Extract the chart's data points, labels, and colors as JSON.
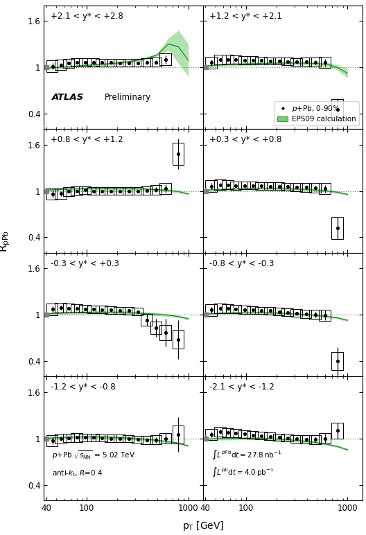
{
  "panels": [
    {
      "label": "+2.1 < y* < +2.8"
    },
    {
      "label": "+1.2 < y* < +2.1"
    },
    {
      "label": "+0.8 < y* < +1.2"
    },
    {
      "label": "+0.3 < y* < +0.8"
    },
    {
      "label": "-0.3 < y* < +0.3"
    },
    {
      "label": "-0.8 < y* < -0.3"
    },
    {
      "label": "-1.2 < y* < -0.8"
    },
    {
      "label": "-2.1 < y* < -1.2"
    }
  ],
  "eps09_color": "#50C050",
  "eps09_edge_color": "#228822",
  "eps09_alpha": 0.45,
  "ylim": [
    0.2,
    1.8
  ],
  "xlim": [
    38,
    1400
  ],
  "yticks": [
    0.4,
    1.0,
    1.6
  ],
  "ytick_labels": [
    "0.4",
    "1",
    "1.6"
  ]
}
